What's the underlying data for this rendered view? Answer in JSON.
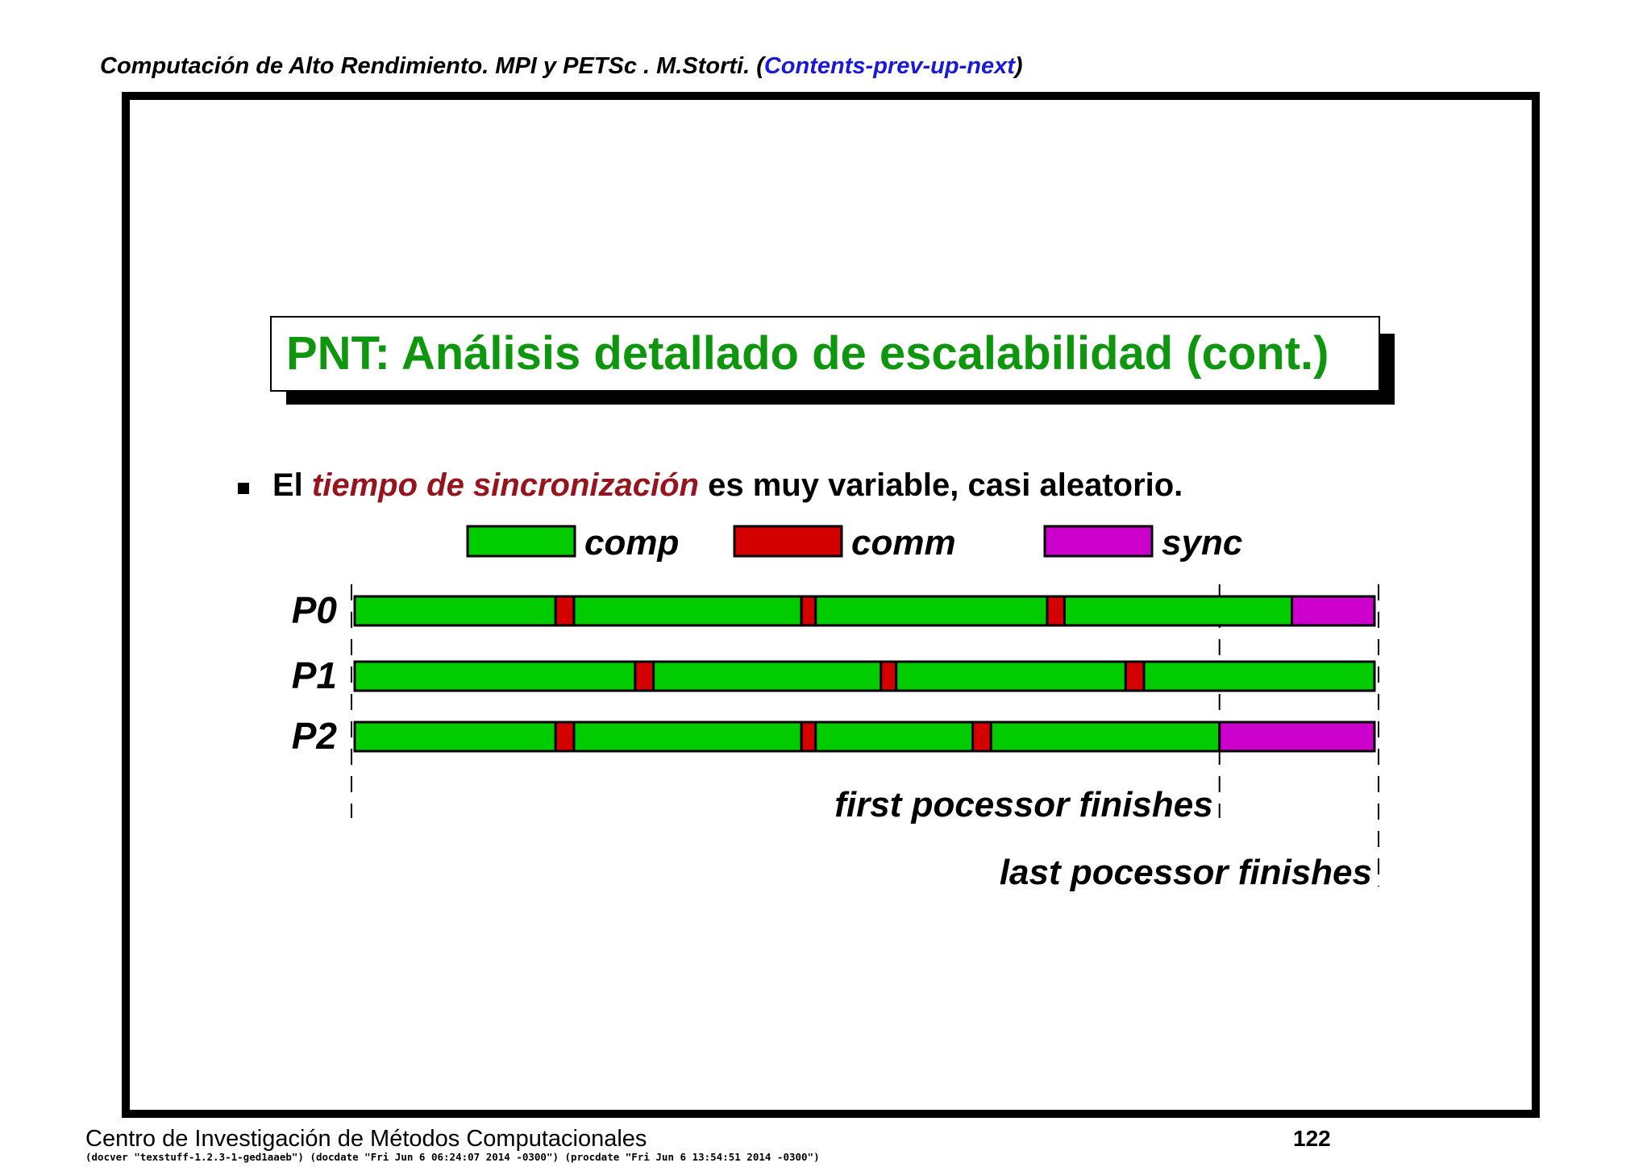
{
  "header": {
    "text": "Computación de Alto Rendimiento. MPI y PETSc . M.Storti. (",
    "contents": "Contents",
    "sep1": "-",
    "prev": "prev",
    "sep2": "-",
    "up": "up",
    "sep3": "-",
    "next": "next",
    "close": ")"
  },
  "title": "PNT: Análisis detallado de escalabilidad (cont.)",
  "bullet": {
    "before": "El ",
    "emph": "tiempo de sincronización",
    "after": " es muy variable, casi aleatorio."
  },
  "legend": [
    {
      "key": "comp",
      "label": "comp",
      "color": "#00cc00"
    },
    {
      "key": "comm",
      "label": "comm",
      "color": "#d40000"
    },
    {
      "key": "sync",
      "label": "sync",
      "color": "#cc00cc"
    }
  ],
  "timeline": {
    "t_end": 100,
    "processors": [
      {
        "label": "P0",
        "segments": [
          {
            "type": "comp",
            "start": 0,
            "end": 19.7
          },
          {
            "type": "comm",
            "start": 19.7,
            "end": 21.5
          },
          {
            "type": "comp",
            "start": 21.5,
            "end": 43.8
          },
          {
            "type": "comm",
            "start": 43.8,
            "end": 45.2
          },
          {
            "type": "comp",
            "start": 45.2,
            "end": 67.9
          },
          {
            "type": "comm",
            "start": 67.9,
            "end": 69.6
          },
          {
            "type": "comp",
            "start": 69.6,
            "end": 91.9
          },
          {
            "type": "sync",
            "start": 91.9,
            "end": 100
          }
        ]
      },
      {
        "label": "P1",
        "segments": [
          {
            "type": "comp",
            "start": 0,
            "end": 27.5
          },
          {
            "type": "comm",
            "start": 27.5,
            "end": 29.3
          },
          {
            "type": "comp",
            "start": 29.3,
            "end": 51.6
          },
          {
            "type": "comm",
            "start": 51.6,
            "end": 53.1
          },
          {
            "type": "comp",
            "start": 53.1,
            "end": 75.6
          },
          {
            "type": "comm",
            "start": 75.6,
            "end": 77.4
          },
          {
            "type": "comp",
            "start": 77.4,
            "end": 100
          }
        ]
      },
      {
        "label": "P2",
        "segments": [
          {
            "type": "comp",
            "start": 0,
            "end": 19.7
          },
          {
            "type": "comm",
            "start": 19.7,
            "end": 21.5
          },
          {
            "type": "comp",
            "start": 21.5,
            "end": 43.8
          },
          {
            "type": "comm",
            "start": 43.8,
            "end": 45.2
          },
          {
            "type": "comp",
            "start": 45.2,
            "end": 60.6
          },
          {
            "type": "comm",
            "start": 60.6,
            "end": 62.4
          },
          {
            "type": "comp",
            "start": 62.4,
            "end": 84.8
          },
          {
            "type": "sync",
            "start": 84.8,
            "end": 100
          }
        ]
      }
    ],
    "markers": [
      {
        "label": "first pocessor finishes",
        "t": 84.8
      },
      {
        "label": "last pocessor finishes",
        "t": 100
      }
    ]
  },
  "footer": {
    "left": "Centro de Investigación de Métodos Computacionales",
    "page": "122",
    "meta": "(docver \"texstuff-1.2.3-1-ged1aaeb\") (docdate \"Fri Jun 6 06:24:07 2014 -0300\") (procdate \"Fri Jun 6 13:54:51 2014 -0300\")"
  }
}
